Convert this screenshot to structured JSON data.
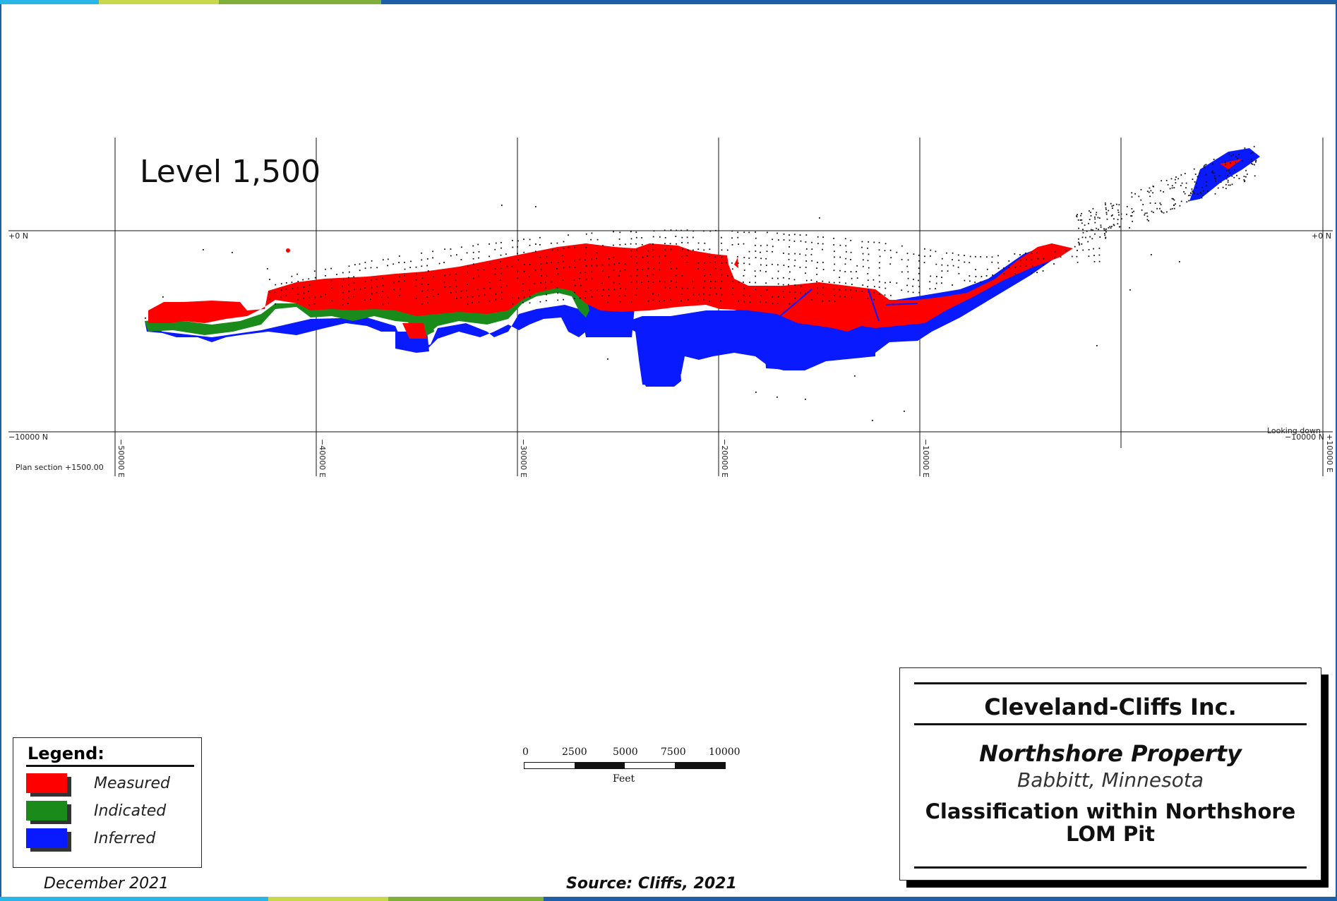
{
  "colors": {
    "measured": "#ff0000",
    "indicated": "#1a8a1a",
    "inferred": "#0a1aff",
    "frame": "#1f5fa8",
    "bar_cyan": "#29b6e6",
    "bar_lime": "#c8d84a",
    "bar_green": "#7fb03a",
    "bar_blue": "#1f5fa8"
  },
  "map": {
    "level_title": "Level 1,500",
    "north_labels": {
      "top_left": "+0 N",
      "top_right": "+0 N",
      "bottom_left": "−10000 N",
      "bottom_right": "−10000 N"
    },
    "east_labels": [
      "−50000 E",
      "−40000 E",
      "−30000 E",
      "−20000 E",
      "−10000 E",
      "+10000 E"
    ],
    "plan_section": "Plan section +1500.00",
    "looking": "Looking down"
  },
  "legend": {
    "title": "Legend:",
    "items": [
      {
        "label": "Measured",
        "color": "#ff0000",
        "icon": "measured-swatch"
      },
      {
        "label": "Indicated",
        "color": "#1a8a1a",
        "icon": "indicated-swatch"
      },
      {
        "label": "Inferred",
        "color": "#0a1aff",
        "icon": "inferred-swatch"
      }
    ]
  },
  "scale": {
    "ticks": [
      "0",
      "2500",
      "5000",
      "7500",
      "10000"
    ],
    "unit": "Feet"
  },
  "title_block": {
    "company": "Cleveland-Cliffs Inc.",
    "property": "Northshore Property",
    "location": "Babbitt, Minnesota",
    "subtitle_line1": "Classification within Northshore",
    "subtitle_line2": "LOM Pit"
  },
  "footer": {
    "date": "December 2021",
    "source": "Source: Cliffs, 2021"
  }
}
